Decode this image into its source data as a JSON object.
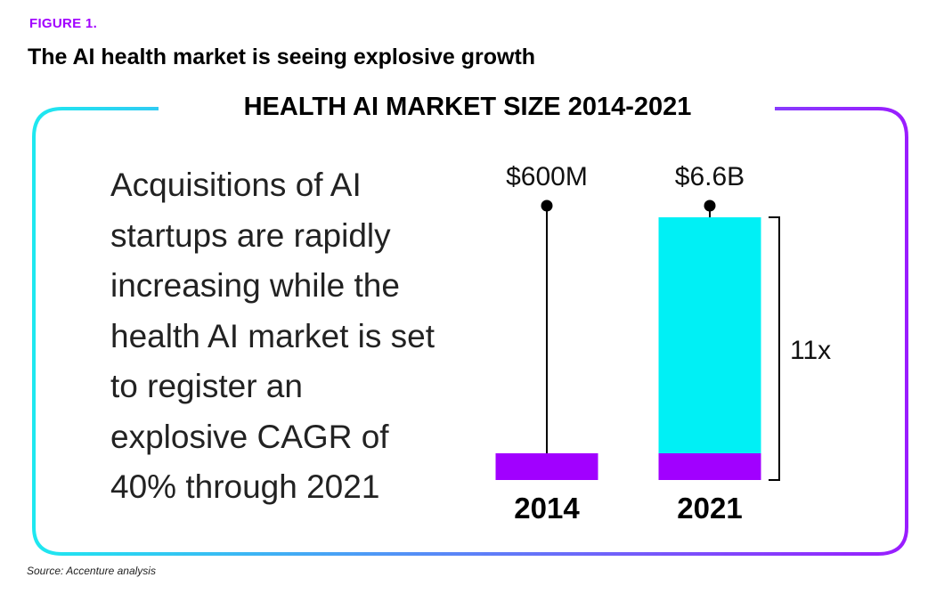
{
  "figure_label": "FIGURE 1.",
  "figure_title": "The AI health market is seeing explosive growth",
  "narrative": "Acquisitions of AI startups are rapidly increasing while the health AI market is set to register an explosive CAGR of 40% through 2021",
  "source": "Source: Accenture analysis",
  "colors": {
    "purple": "#a100ff",
    "cyan": "#00f0f5",
    "frame_gradient_start": "#1ee8f0",
    "frame_gradient_end": "#9a1cff"
  },
  "chart_data": {
    "type": "bar",
    "title": "HEALTH AI MARKET SIZE 2014-2021",
    "categories": [
      "2014",
      "2021"
    ],
    "values": [
      0.6,
      6.6
    ],
    "unit": "billion USD",
    "value_labels": [
      "$600M",
      "$6.6B"
    ],
    "growth_annotation": "11x",
    "xlabel": "",
    "ylabel": "",
    "grid": false
  }
}
